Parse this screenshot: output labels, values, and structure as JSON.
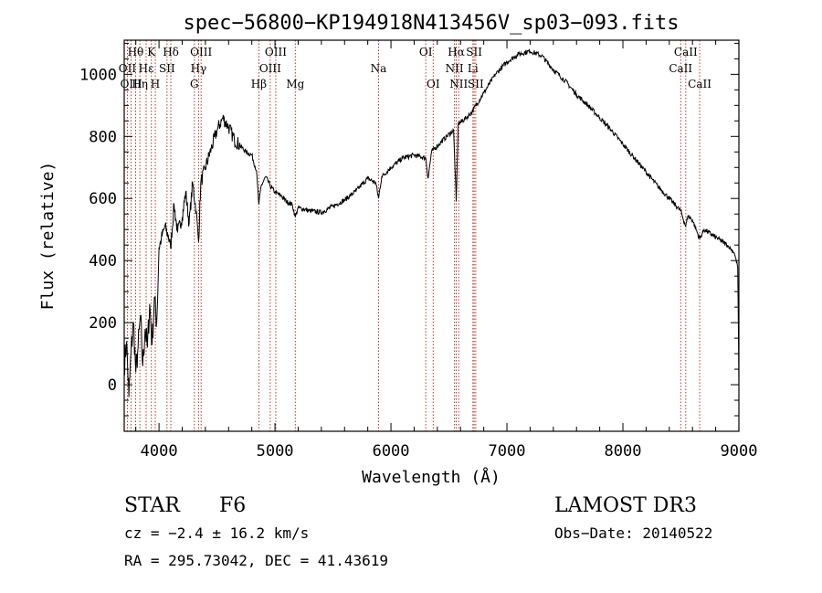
{
  "chart_data": {
    "type": "line",
    "title": "spec−56800−KP194918N413456V_sp03−093.fits",
    "xlabel": "Wavelength (Å)",
    "ylabel": "Flux (relative)",
    "xlim": [
      3700,
      9000
    ],
    "ylim": [
      -150,
      1110
    ],
    "xticks": [
      4000,
      5000,
      6000,
      7000,
      8000,
      9000
    ],
    "yticks": [
      0,
      200,
      400,
      600,
      800,
      1000
    ],
    "grid": false,
    "line_color": "#000000",
    "marker_color": "#b22222",
    "spectral_lines": [
      {
        "label": "Hθ",
        "wavelength": 3798,
        "row": 0
      },
      {
        "label": "OII",
        "wavelength": 3727,
        "row": 1
      },
      {
        "label": "OIII",
        "wavelength": 3760,
        "row": 2
      },
      {
        "label": "K",
        "wavelength": 3934,
        "row": 0
      },
      {
        "label": "Hε",
        "wavelength": 3889,
        "row": 1
      },
      {
        "label": "Hη",
        "wavelength": 3835,
        "row": 2
      },
      {
        "label": "Hδ",
        "wavelength": 4102,
        "row": 0
      },
      {
        "label": "SII",
        "wavelength": 4069,
        "row": 1
      },
      {
        "label": "H",
        "wavelength": 3968,
        "row": 2
      },
      {
        "label": "OIII",
        "wavelength": 4363,
        "row": 0
      },
      {
        "label": "Hγ",
        "wavelength": 4341,
        "row": 1
      },
      {
        "label": "G",
        "wavelength": 4305,
        "row": 2
      },
      {
        "label": "Hβ",
        "wavelength": 4861,
        "row": 2
      },
      {
        "label": "OIII",
        "wavelength": 5007,
        "row": 0
      },
      {
        "label": "OIII",
        "wavelength": 4959,
        "row": 1
      },
      {
        "label": "Mg",
        "wavelength": 5175,
        "row": 2
      },
      {
        "label": "Na",
        "wavelength": 5893,
        "row": 1
      },
      {
        "label": "OI",
        "wavelength": 6300,
        "row": 0
      },
      {
        "label": "OI",
        "wavelength": 6364,
        "row": 2
      },
      {
        "label": "Hα",
        "wavelength": 6563,
        "row": 0
      },
      {
        "label": "NII",
        "wavelength": 6548,
        "row": 1
      },
      {
        "label": "NII",
        "wavelength": 6584,
        "row": 2
      },
      {
        "label": "SII",
        "wavelength": 6717,
        "row": 0
      },
      {
        "label": "Li",
        "wavelength": 6707,
        "row": 1
      },
      {
        "label": "SII",
        "wavelength": 6731,
        "row": 2
      },
      {
        "label": "CaII",
        "wavelength": 8542,
        "row": 0
      },
      {
        "label": "CaII",
        "wavelength": 8498,
        "row": 1
      },
      {
        "label": "CaII",
        "wavelength": 8662,
        "row": 2
      }
    ],
    "spectrum": [
      [
        3700,
        60
      ],
      [
        3720,
        140
      ],
      [
        3740,
        -40
      ],
      [
        3760,
        110
      ],
      [
        3780,
        200
      ],
      [
        3800,
        40
      ],
      [
        3820,
        120
      ],
      [
        3840,
        220
      ],
      [
        3860,
        60
      ],
      [
        3880,
        180
      ],
      [
        3900,
        120
      ],
      [
        3920,
        260
      ],
      [
        3940,
        130
      ],
      [
        3960,
        280
      ],
      [
        3980,
        200
      ],
      [
        4000,
        440
      ],
      [
        4020,
        470
      ],
      [
        4050,
        510
      ],
      [
        4080,
        480
      ],
      [
        4100,
        440
      ],
      [
        4130,
        580
      ],
      [
        4160,
        490
      ],
      [
        4200,
        540
      ],
      [
        4230,
        620
      ],
      [
        4260,
        520
      ],
      [
        4290,
        650
      ],
      [
        4320,
        560
      ],
      [
        4341,
        460
      ],
      [
        4360,
        650
      ],
      [
        4400,
        700
      ],
      [
        4450,
        760
      ],
      [
        4500,
        820
      ],
      [
        4550,
        860
      ],
      [
        4600,
        830
      ],
      [
        4650,
        790
      ],
      [
        4700,
        770
      ],
      [
        4750,
        750
      ],
      [
        4800,
        740
      ],
      [
        4840,
        690
      ],
      [
        4861,
        580
      ],
      [
        4880,
        640
      ],
      [
        4920,
        670
      ],
      [
        4960,
        640
      ],
      [
        5000,
        620
      ],
      [
        5050,
        610
      ],
      [
        5100,
        590
      ],
      [
        5150,
        580
      ],
      [
        5175,
        540
      ],
      [
        5200,
        570
      ],
      [
        5300,
        560
      ],
      [
        5400,
        555
      ],
      [
        5500,
        575
      ],
      [
        5600,
        595
      ],
      [
        5700,
        625
      ],
      [
        5800,
        665
      ],
      [
        5870,
        650
      ],
      [
        5893,
        600
      ],
      [
        5920,
        670
      ],
      [
        6000,
        700
      ],
      [
        6100,
        730
      ],
      [
        6200,
        740
      ],
      [
        6300,
        730
      ],
      [
        6320,
        665
      ],
      [
        6350,
        750
      ],
      [
        6400,
        770
      ],
      [
        6480,
        800
      ],
      [
        6540,
        820
      ],
      [
        6563,
        590
      ],
      [
        6580,
        840
      ],
      [
        6650,
        860
      ],
      [
        6700,
        880
      ],
      [
        6800,
        940
      ],
      [
        6900,
        1000
      ],
      [
        7000,
        1040
      ],
      [
        7100,
        1065
      ],
      [
        7200,
        1075
      ],
      [
        7300,
        1060
      ],
      [
        7400,
        1015
      ],
      [
        7500,
        980
      ],
      [
        7600,
        935
      ],
      [
        7700,
        900
      ],
      [
        7800,
        860
      ],
      [
        7900,
        820
      ],
      [
        8000,
        775
      ],
      [
        8100,
        730
      ],
      [
        8200,
        685
      ],
      [
        8300,
        640
      ],
      [
        8400,
        600
      ],
      [
        8498,
        560
      ],
      [
        8542,
        510
      ],
      [
        8560,
        545
      ],
      [
        8600,
        530
      ],
      [
        8662,
        470
      ],
      [
        8700,
        500
      ],
      [
        8800,
        475
      ],
      [
        8900,
        450
      ],
      [
        8960,
        425
      ],
      [
        8990,
        380
      ],
      [
        9000,
        0
      ]
    ]
  },
  "info": {
    "object_class": "STAR",
    "subclass": "F6",
    "survey": "LAMOST DR3",
    "cz": "cz = −2.4 ± 16.2 km/s",
    "obs_date": "Obs−Date: 20140522",
    "coords": "RA = 295.73042, DEC =  41.43619"
  }
}
